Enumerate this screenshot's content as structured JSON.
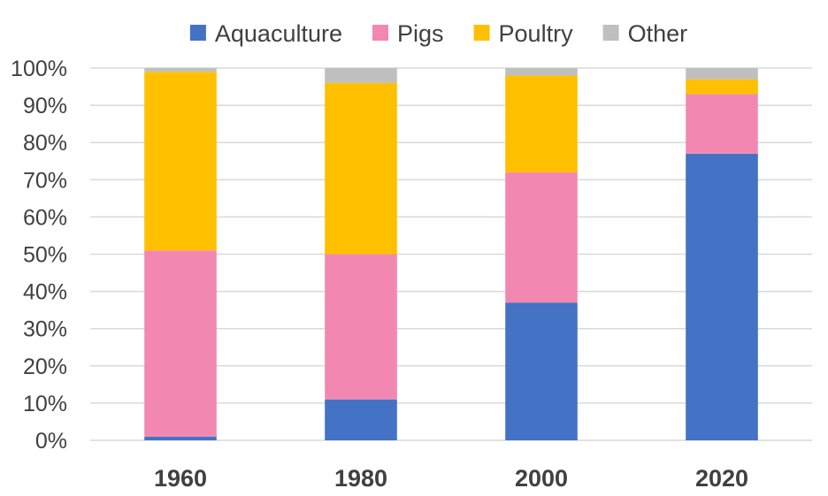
{
  "chart_data": {
    "type": "bar",
    "stacked": true,
    "categories": [
      "1960",
      "1980",
      "2000",
      "2020"
    ],
    "series": [
      {
        "name": "Aquaculture",
        "color": "#4472c4",
        "values": [
          1,
          11,
          37,
          77
        ]
      },
      {
        "name": "Pigs",
        "color": "#f288b1",
        "values": [
          50,
          39,
          35,
          16
        ]
      },
      {
        "name": "Poultry",
        "color": "#ffc000",
        "values": [
          48,
          46,
          26,
          4
        ]
      },
      {
        "name": "Other",
        "color": "#bfbfbf",
        "values": [
          1,
          4,
          2,
          3
        ]
      }
    ],
    "yticks": [
      "0%",
      "10%",
      "20%",
      "30%",
      "40%",
      "50%",
      "60%",
      "70%",
      "80%",
      "90%",
      "100%"
    ],
    "ylim": [
      0,
      100
    ],
    "grid": true,
    "legend_position": "top"
  }
}
